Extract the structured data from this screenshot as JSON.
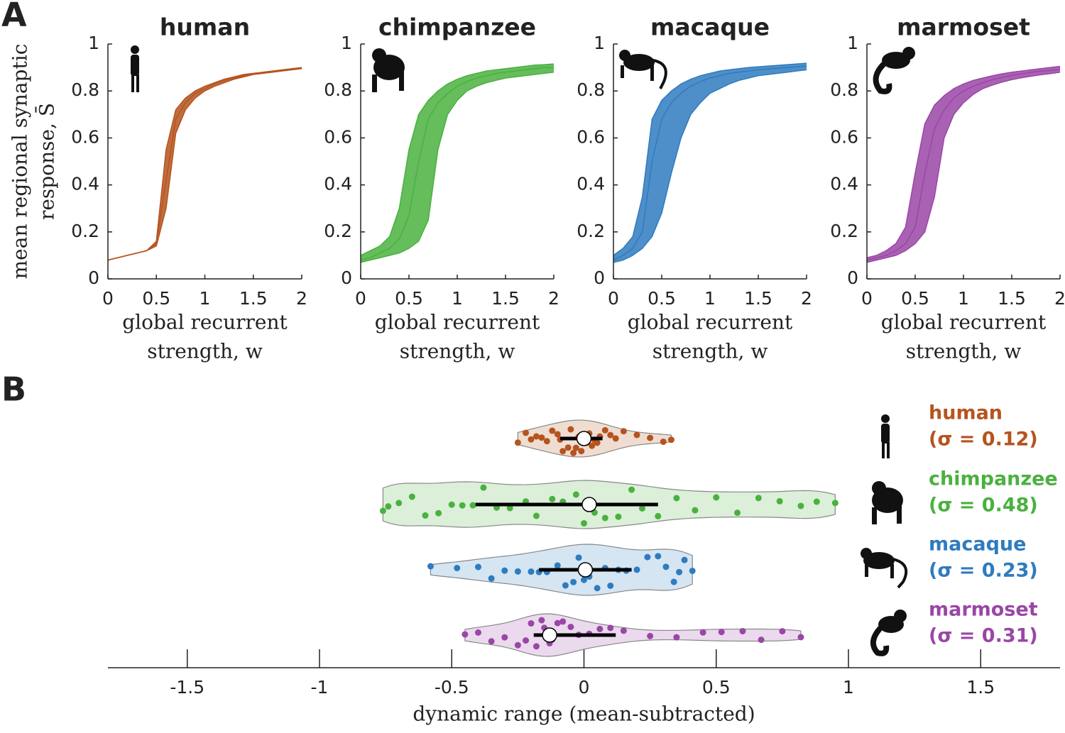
{
  "chart_data": [
    {
      "type": "line",
      "panel_label": "A",
      "title": "human",
      "ylabel": [
        "mean regional synaptic",
        "response, S̄"
      ],
      "xlabel": [
        "global recurrent",
        "strength, w"
      ],
      "xlim": [
        0,
        2
      ],
      "ylim": [
        0,
        1
      ],
      "xticks": [
        0,
        0.5,
        1,
        1.5,
        2
      ],
      "yticks": [
        0,
        0.2,
        0.4,
        0.6,
        0.8,
        1
      ],
      "x": [
        0,
        0.1,
        0.2,
        0.3,
        0.4,
        0.5,
        0.6,
        0.7,
        0.8,
        0.9,
        1,
        1.1,
        1.2,
        1.3,
        1.4,
        1.5,
        1.6,
        1.7,
        1.8,
        1.9,
        2
      ],
      "series": [
        {
          "color": "#b5541f",
          "values": [
            0.08,
            0.09,
            0.1,
            0.11,
            0.12,
            0.16,
            0.55,
            0.72,
            0.77,
            0.8,
            0.82,
            0.835,
            0.85,
            0.86,
            0.87,
            0.875,
            0.88,
            0.885,
            0.89,
            0.895,
            0.9
          ]
        },
        {
          "color": "#b5541f",
          "values": [
            0.08,
            0.09,
            0.1,
            0.11,
            0.12,
            0.15,
            0.42,
            0.68,
            0.75,
            0.79,
            0.81,
            0.83,
            0.845,
            0.855,
            0.865,
            0.872,
            0.878,
            0.883,
            0.888,
            0.893,
            0.898
          ]
        },
        {
          "color": "#b5541f",
          "values": [
            0.08,
            0.09,
            0.1,
            0.11,
            0.12,
            0.14,
            0.3,
            0.62,
            0.72,
            0.77,
            0.8,
            0.82,
            0.835,
            0.85,
            0.86,
            0.87,
            0.875,
            0.88,
            0.885,
            0.89,
            0.895
          ]
        }
      ]
    },
    {
      "type": "line",
      "title": "chimpanzee",
      "xlabel": [
        "global recurrent",
        "strength, w"
      ],
      "xlim": [
        0,
        2
      ],
      "ylim": [
        0,
        1
      ],
      "xticks": [
        0,
        0.5,
        1,
        1.5,
        2
      ],
      "yticks": [
        0,
        0.2,
        0.4,
        0.6,
        0.8,
        1
      ],
      "x": [
        0,
        0.1,
        0.2,
        0.3,
        0.4,
        0.5,
        0.6,
        0.7,
        0.8,
        0.9,
        1,
        1.1,
        1.2,
        1.3,
        1.4,
        1.5,
        1.6,
        1.7,
        1.8,
        1.9,
        2
      ],
      "series": [
        {
          "color": "#4ab13f",
          "values": [
            0.1,
            0.12,
            0.14,
            0.18,
            0.3,
            0.55,
            0.7,
            0.76,
            0.8,
            0.83,
            0.85,
            0.865,
            0.875,
            0.885,
            0.89,
            0.895,
            0.9,
            0.905,
            0.91,
            0.912,
            0.915
          ]
        },
        {
          "color": "#4ab13f",
          "values": [
            0.08,
            0.09,
            0.11,
            0.13,
            0.17,
            0.27,
            0.5,
            0.68,
            0.75,
            0.79,
            0.82,
            0.84,
            0.855,
            0.865,
            0.875,
            0.88,
            0.885,
            0.89,
            0.895,
            0.9,
            0.9
          ]
        },
        {
          "color": "#4ab13f",
          "values": [
            0.07,
            0.08,
            0.09,
            0.1,
            0.11,
            0.13,
            0.16,
            0.25,
            0.55,
            0.7,
            0.76,
            0.8,
            0.82,
            0.835,
            0.845,
            0.855,
            0.86,
            0.865,
            0.87,
            0.875,
            0.88
          ]
        }
      ]
    },
    {
      "type": "line",
      "title": "macaque",
      "xlabel": [
        "global recurrent",
        "strength, w"
      ],
      "xlim": [
        0,
        2
      ],
      "ylim": [
        0,
        1
      ],
      "xticks": [
        0,
        0.5,
        1,
        1.5,
        2
      ],
      "yticks": [
        0,
        0.2,
        0.4,
        0.6,
        0.8,
        1
      ],
      "x": [
        0,
        0.1,
        0.2,
        0.3,
        0.4,
        0.5,
        0.6,
        0.7,
        0.8,
        0.9,
        1,
        1.1,
        1.2,
        1.3,
        1.4,
        1.5,
        1.6,
        1.7,
        1.8,
        1.9,
        2
      ],
      "series": [
        {
          "color": "#2f7bbf",
          "values": [
            0.1,
            0.13,
            0.18,
            0.35,
            0.68,
            0.76,
            0.8,
            0.83,
            0.85,
            0.865,
            0.875,
            0.885,
            0.89,
            0.895,
            0.9,
            0.903,
            0.906,
            0.909,
            0.912,
            0.915,
            0.918
          ]
        },
        {
          "color": "#2f7bbf",
          "values": [
            0.08,
            0.1,
            0.13,
            0.2,
            0.5,
            0.68,
            0.75,
            0.79,
            0.82,
            0.84,
            0.855,
            0.865,
            0.875,
            0.88,
            0.885,
            0.89,
            0.893,
            0.896,
            0.9,
            0.903,
            0.906
          ]
        },
        {
          "color": "#2f7bbf",
          "values": [
            0.07,
            0.08,
            0.1,
            0.13,
            0.18,
            0.28,
            0.45,
            0.6,
            0.7,
            0.75,
            0.79,
            0.81,
            0.83,
            0.845,
            0.855,
            0.865,
            0.87,
            0.875,
            0.88,
            0.885,
            0.89
          ]
        }
      ]
    },
    {
      "type": "line",
      "title": "marmoset",
      "xlabel": [
        "global recurrent",
        "strength, w"
      ],
      "xlim": [
        0,
        2
      ],
      "ylim": [
        0,
        1
      ],
      "xticks": [
        0,
        0.5,
        1,
        1.5,
        2
      ],
      "yticks": [
        0,
        0.2,
        0.4,
        0.6,
        0.8,
        1
      ],
      "x": [
        0,
        0.1,
        0.2,
        0.3,
        0.4,
        0.5,
        0.6,
        0.7,
        0.8,
        0.9,
        1,
        1.1,
        1.2,
        1.3,
        1.4,
        1.5,
        1.6,
        1.7,
        1.8,
        1.9,
        2
      ],
      "series": [
        {
          "color": "#9a46a6",
          "values": [
            0.09,
            0.1,
            0.12,
            0.15,
            0.22,
            0.45,
            0.66,
            0.74,
            0.78,
            0.81,
            0.83,
            0.845,
            0.855,
            0.865,
            0.873,
            0.88,
            0.885,
            0.89,
            0.895,
            0.9,
            0.905
          ]
        },
        {
          "color": "#9a46a6",
          "values": [
            0.08,
            0.09,
            0.1,
            0.12,
            0.15,
            0.22,
            0.45,
            0.64,
            0.72,
            0.77,
            0.8,
            0.82,
            0.835,
            0.848,
            0.858,
            0.866,
            0.873,
            0.879,
            0.884,
            0.888,
            0.892
          ]
        },
        {
          "color": "#9a46a6",
          "values": [
            0.07,
            0.08,
            0.09,
            0.1,
            0.12,
            0.15,
            0.2,
            0.35,
            0.6,
            0.7,
            0.75,
            0.785,
            0.81,
            0.825,
            0.838,
            0.848,
            0.856,
            0.863,
            0.869,
            0.874,
            0.88
          ]
        }
      ]
    },
    {
      "type": "violin",
      "panel_label": "B",
      "xlabel": "dynamic range (mean-subtracted)",
      "xlim": [
        -1.8,
        1.8
      ],
      "xticks": [
        -1.5,
        -1,
        -0.5,
        0,
        0.5,
        1,
        1.5
      ],
      "groups": [
        {
          "name": "human",
          "std": 0.12,
          "std_label": "(σ = 0.12)",
          "color": "#b5541f",
          "median": 0,
          "whisker": [
            -0.09,
            0.07
          ],
          "points": [
            -0.25,
            -0.22,
            -0.2,
            -0.18,
            -0.16,
            -0.14,
            -0.12,
            -0.1,
            -0.09,
            -0.08,
            -0.06,
            -0.05,
            -0.04,
            -0.03,
            -0.02,
            -0.01,
            0,
            0.01,
            0.02,
            0.03,
            0.04,
            0.05,
            0.06,
            0.08,
            0.1,
            0.12,
            0.15,
            0.2,
            0.25,
            0.3,
            0.33
          ]
        },
        {
          "name": "chimpanzee",
          "std": 0.48,
          "std_label": "(σ = 0.48)",
          "color": "#4ab13f",
          "median": 0.02,
          "whisker": [
            -0.41,
            0.28
          ],
          "points": [
            -0.76,
            -0.74,
            -0.7,
            -0.65,
            -0.6,
            -0.55,
            -0.5,
            -0.46,
            -0.42,
            -0.38,
            -0.33,
            -0.28,
            -0.22,
            -0.18,
            -0.12,
            -0.08,
            -0.03,
            0,
            0.04,
            0.08,
            0.13,
            0.18,
            0.22,
            0.28,
            0.35,
            0.42,
            0.5,
            0.58,
            0.66,
            0.74,
            0.82,
            0.88,
            0.95
          ]
        },
        {
          "name": "macaque",
          "std": 0.23,
          "std_label": "(σ = 0.23)",
          "color": "#2f7bbf",
          "median": 0.005,
          "whisker": [
            -0.17,
            0.18
          ],
          "points": [
            -0.58,
            -0.48,
            -0.4,
            -0.35,
            -0.3,
            -0.25,
            -0.2,
            -0.17,
            -0.14,
            -0.1,
            -0.07,
            -0.04,
            -0.02,
            0,
            0.02,
            0.05,
            0.08,
            0.1,
            0.13,
            0.16,
            0.2,
            0.24,
            0.28,
            0.31,
            0.34,
            0.36,
            0.38,
            0.41
          ]
        },
        {
          "name": "marmoset",
          "std": 0.31,
          "std_label": "(σ = 0.31)",
          "color": "#9a46a6",
          "median": -0.13,
          "whisker": [
            -0.19,
            0.12
          ],
          "points": [
            -0.45,
            -0.4,
            -0.35,
            -0.3,
            -0.25,
            -0.22,
            -0.2,
            -0.18,
            -0.16,
            -0.15,
            -0.13,
            -0.12,
            -0.1,
            -0.08,
            -0.05,
            -0.02,
            0.02,
            0.06,
            0.1,
            0.15,
            0.25,
            0.35,
            0.45,
            0.52,
            0.6,
            0.67,
            0.75,
            0.82
          ]
        }
      ]
    }
  ]
}
